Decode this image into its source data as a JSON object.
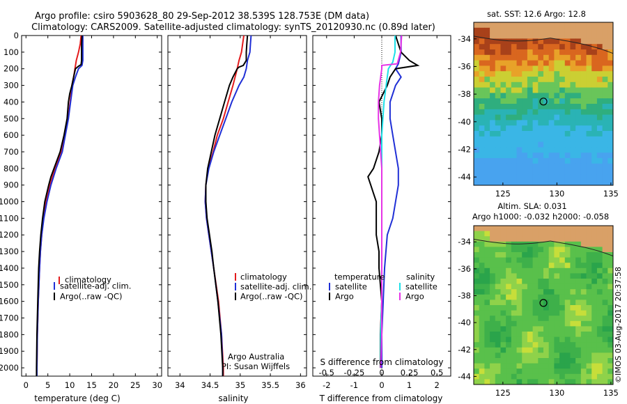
{
  "header": {
    "line1": "Argo profile: csiro 5903628_80 29-Sep-2012 38.539S 128.753E (DM data)",
    "line2": "Climatology: CARS2009. Satellite-adjusted climatology: synTS_20120930.nc (0.89d later)"
  },
  "depth_axis": {
    "ticks": [
      0,
      100,
      200,
      300,
      400,
      500,
      600,
      700,
      800,
      900,
      1000,
      1100,
      1200,
      1300,
      1400,
      1500,
      1600,
      1700,
      1800,
      1900,
      2000
    ]
  },
  "colors": {
    "climatology": "#e31a1c",
    "satellite": "#1f2fd6",
    "argo": "#000000",
    "sal_satellite": "#1de0e8",
    "sal_argo": "#e633e6"
  },
  "chart_data": [
    {
      "type": "line",
      "id": "temperature",
      "xlabel": "temperature (deg C)",
      "xlim": [
        -1,
        31
      ],
      "ylim": [
        2050,
        0
      ],
      "xticks": [
        0,
        5,
        10,
        15,
        20,
        25,
        30
      ],
      "legend": [
        "climatology",
        "satellite-adj. clim.",
        "Argo(..raw -QC)"
      ],
      "series": [
        {
          "name": "climatology",
          "depth": [
            0,
            50,
            100,
            150,
            200,
            250,
            300,
            400,
            500,
            600,
            700,
            800,
            900,
            1000,
            1100,
            1200,
            1300,
            1400,
            1600,
            1800,
            2000,
            2050
          ],
          "values": [
            12.6,
            12.4,
            12.0,
            11.5,
            11.2,
            10.9,
            10.5,
            10.1,
            9.6,
            8.8,
            8.0,
            6.6,
            5.5,
            4.6,
            4.0,
            3.6,
            3.3,
            3.1,
            2.8,
            2.6,
            2.5,
            2.5
          ]
        },
        {
          "name": "satellite-adj. clim.",
          "depth": [
            0,
            50,
            100,
            150,
            180,
            200,
            250,
            300,
            400,
            500,
            600,
            700,
            800,
            900,
            1000,
            1100,
            1200,
            1300,
            1400,
            1600,
            1800,
            2000,
            2050
          ],
          "values": [
            13.0,
            13.0,
            13.0,
            13.0,
            12.8,
            12.0,
            11.3,
            10.7,
            10.2,
            9.7,
            9.0,
            8.3,
            6.9,
            5.7,
            4.8,
            4.1,
            3.6,
            3.3,
            3.1,
            2.8,
            2.6,
            2.5,
            2.5
          ]
        },
        {
          "name": "Argo(..raw -QC)",
          "depth": [
            0,
            50,
            100,
            150,
            175,
            185,
            200,
            250,
            300,
            350,
            400,
            500,
            600,
            700,
            800,
            850,
            900,
            1000,
            1100,
            1200,
            1300,
            1400,
            1600,
            1800,
            2000,
            2050
          ],
          "values": [
            12.8,
            12.7,
            12.7,
            12.7,
            12.6,
            12.0,
            11.3,
            10.9,
            10.5,
            10.0,
            9.7,
            9.4,
            8.7,
            7.8,
            6.4,
            5.7,
            5.2,
            4.3,
            3.8,
            3.4,
            3.1,
            2.9,
            2.7,
            2.5,
            2.4,
            2.4
          ]
        }
      ]
    },
    {
      "type": "line",
      "id": "salinity",
      "xlabel": "salinity",
      "xlim": [
        33.8,
        36.1
      ],
      "ylim": [
        2050,
        0
      ],
      "xticks": [
        34,
        34.5,
        35,
        35.5,
        36
      ],
      "legend": [
        "climatology",
        "satellite-adj. clim.",
        "Argo(..raw -QC)"
      ],
      "annotation": [
        "Argo Australia",
        "PI: Susan Wijffels"
      ],
      "series": [
        {
          "name": "climatology",
          "depth": [
            0,
            50,
            100,
            150,
            200,
            300,
            400,
            500,
            600,
            700,
            800,
            900,
            1000,
            1100,
            1200,
            1300,
            1400,
            1600,
            1800,
            2000,
            2050
          ],
          "values": [
            35.06,
            35.04,
            35.02,
            34.98,
            34.95,
            34.88,
            34.8,
            34.72,
            34.62,
            34.55,
            34.47,
            34.43,
            34.42,
            34.44,
            34.48,
            34.52,
            34.56,
            34.64,
            34.69,
            34.72,
            34.72
          ]
        },
        {
          "name": "satellite-adj. clim.",
          "depth": [
            0,
            50,
            100,
            150,
            200,
            250,
            300,
            400,
            500,
            600,
            700,
            800,
            900,
            1000,
            1100,
            1200,
            1300,
            1400,
            1600,
            1800,
            2000,
            2050
          ],
          "values": [
            35.18,
            35.17,
            35.16,
            35.12,
            35.1,
            35.06,
            34.98,
            34.86,
            34.76,
            34.66,
            34.56,
            34.48,
            34.43,
            34.42,
            34.44,
            34.48,
            34.52,
            34.56,
            34.63,
            34.69,
            34.71,
            34.71
          ]
        },
        {
          "name": "Argo(..raw -QC)",
          "depth": [
            0,
            50,
            100,
            150,
            180,
            190,
            200,
            250,
            300,
            400,
            500,
            600,
            700,
            800,
            900,
            1000,
            1100,
            1200,
            1300,
            1400,
            1600,
            1800,
            2000,
            2050
          ],
          "values": [
            35.12,
            35.11,
            35.1,
            35.1,
            35.05,
            34.98,
            34.95,
            34.88,
            34.82,
            34.74,
            34.66,
            34.58,
            34.52,
            34.46,
            34.43,
            34.43,
            34.45,
            34.49,
            34.53,
            34.56,
            34.63,
            34.68,
            34.71,
            34.71
          ]
        }
      ]
    },
    {
      "type": "line",
      "id": "difference",
      "xlabel": "T difference from climatology",
      "xlabel_top": "S difference from climatology",
      "xlim": [
        -2.5,
        2.5
      ],
      "ylim": [
        2050,
        0
      ],
      "xticks": [
        -2,
        -1,
        0,
        1,
        2
      ],
      "top_ticks": [
        "-0.5",
        "-0.25",
        "0",
        "0.25",
        "0.5"
      ],
      "legend_temperature": {
        "title": "temperature",
        "items": [
          "satellite",
          "Argo"
        ]
      },
      "legend_salinity": {
        "title": "salinity",
        "items": [
          "satellite",
          "Argo"
        ]
      },
      "series": [
        {
          "name": "T satellite",
          "depth": [
            0,
            100,
            170,
            200,
            250,
            300,
            400,
            500,
            600,
            700,
            800,
            900,
            1000,
            1100,
            1200,
            1400,
            1600,
            1800,
            2000
          ],
          "values": [
            0.7,
            0.7,
            0.6,
            0.5,
            0.7,
            0.5,
            0.3,
            0.3,
            0.4,
            0.5,
            0.6,
            0.6,
            0.5,
            0.4,
            0.2,
            0.1,
            0.05,
            0.0,
            0.0
          ]
        },
        {
          "name": "T Argo",
          "depth": [
            0,
            100,
            150,
            180,
            200,
            250,
            300,
            400,
            500,
            600,
            700,
            800,
            850,
            900,
            950,
            1000,
            1050,
            1100,
            1200,
            1300,
            1400,
            1600,
            1800,
            2000
          ],
          "values": [
            0.5,
            0.7,
            1.0,
            1.3,
            0.5,
            0.3,
            0.2,
            -0.1,
            0.0,
            0.0,
            -0.1,
            -0.3,
            -0.5,
            -0.4,
            -0.3,
            -0.2,
            -0.2,
            -0.2,
            -0.2,
            -0.1,
            -0.1,
            0.0,
            -0.05,
            -0.05
          ]
        },
        {
          "name": "S satellite",
          "depth": [
            0,
            100,
            160,
            200,
            300,
            400,
            500,
            600,
            700,
            800,
            1000,
            1200,
            1400,
            1600,
            1800,
            2000
          ],
          "values": [
            0.12,
            0.12,
            0.1,
            0.06,
            0.04,
            0.02,
            0.01,
            0.0,
            0.0,
            0.0,
            0.0,
            0.0,
            0.0,
            0.0,
            -0.01,
            -0.01
          ]
        },
        {
          "name": "S Argo",
          "depth": [
            0,
            100,
            170,
            180,
            200,
            300,
            400,
            500,
            600,
            700,
            800,
            1000,
            1200,
            1400,
            1600,
            1800,
            2000
          ],
          "values": [
            0.18,
            0.17,
            0.14,
            0.0,
            0.0,
            -0.02,
            -0.03,
            -0.03,
            -0.02,
            -0.01,
            0.0,
            0.0,
            0.0,
            0.0,
            0.0,
            0.0,
            -0.01
          ]
        }
      ]
    },
    {
      "type": "heatmap",
      "id": "sst_map",
      "title": "sat. SST: 12.6 Argo: 12.8",
      "xlim": [
        122.3,
        135.2
      ],
      "ylim": [
        -44.6,
        -32.8
      ],
      "xticks": [
        125,
        130,
        135
      ],
      "yticks": [
        -34,
        -36,
        -38,
        -40,
        -42,
        -44
      ],
      "marker": {
        "lon": 128.753,
        "lat": -38.539
      }
    },
    {
      "type": "heatmap",
      "id": "sla_map",
      "title_line1": "Altim. SLA: 0.031",
      "title_line2": "Argo h1000: -0.032 h2000: -0.058",
      "xlim": [
        122.3,
        135.2
      ],
      "ylim": [
        -44.6,
        -32.8
      ],
      "xticks": [
        125,
        130,
        135
      ],
      "yticks": [
        -34,
        -36,
        -38,
        -40,
        -42,
        -44
      ],
      "marker": {
        "lon": 128.753,
        "lat": -38.539
      }
    }
  ],
  "legend_labels": {
    "climatology": "climatology",
    "satellite_adj": "satellite-adj. clim.",
    "argo_raw": "Argo(..raw -QC)"
  },
  "diff_legend": {
    "temperature": "temperature",
    "salinity": "salinity",
    "satellite": "satellite",
    "argo": "Argo"
  },
  "credit": "©IMOS 03-Aug-2017 20:37:58"
}
